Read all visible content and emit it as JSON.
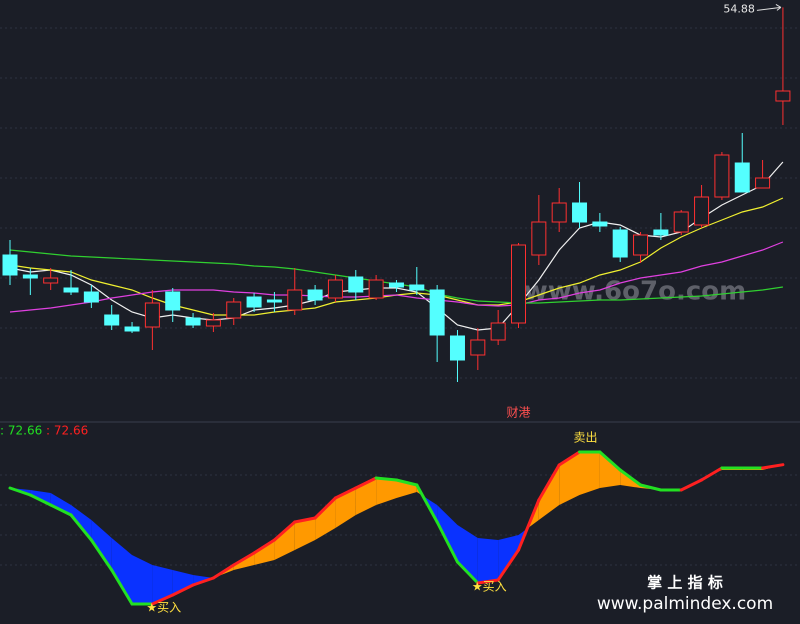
{
  "chart_data": [
    {
      "type": "candlestick",
      "ylim": [
        34.25,
        55.25
      ],
      "up_color": "#ff3030",
      "down_color": "#54ffff",
      "opens": [
        42.5,
        41.5,
        41.1,
        40.85,
        40.65,
        39.5,
        38.9,
        38.9,
        40.65,
        39.35,
        38.95,
        39.35,
        40.4,
        40.25,
        39.75,
        40.75,
        40.35,
        41.4,
        40.35,
        41.1,
        41,
        40.75,
        38.45,
        37.5,
        38.25,
        39.1,
        42.5,
        44.15,
        45.1,
        44.15,
        43.75,
        42.5,
        43.75,
        43.65,
        44,
        45.4,
        47.1,
        45.85,
        50.2
      ],
      "closes": [
        41.5,
        41.35,
        41.35,
        40.65,
        40.15,
        39,
        38.7,
        40.1,
        39.75,
        39,
        39.25,
        40.15,
        39.9,
        40.15,
        40.75,
        40.25,
        41.25,
        40.65,
        41.25,
        40.9,
        40.75,
        38.5,
        37.25,
        38.25,
        39.1,
        43,
        44.15,
        45.1,
        44.15,
        43.95,
        42.4,
        43.5,
        43.5,
        44.65,
        45.4,
        47.5,
        45.65,
        46.35,
        50.7
      ],
      "highs": [
        43.25,
        41.85,
        41.85,
        41.75,
        41,
        40,
        39.15,
        40.75,
        40.85,
        39.6,
        39.6,
        40.35,
        40.6,
        40.65,
        41.85,
        41,
        41.5,
        41.75,
        41.5,
        41.25,
        41.9,
        41,
        38.75,
        38.85,
        39.75,
        43.1,
        45.5,
        45.85,
        46.15,
        44.6,
        43.9,
        43.65,
        44.6,
        44.75,
        46,
        47.65,
        48.6,
        47.25,
        54.88
      ],
      "lows": [
        41,
        40.5,
        40.75,
        40.5,
        39.85,
        38.75,
        38.6,
        37.75,
        39.15,
        38.85,
        38.65,
        39,
        39.65,
        39.65,
        39.5,
        40,
        40.15,
        40.25,
        40.25,
        40.65,
        40.5,
        37.15,
        36.15,
        36.75,
        38,
        38.85,
        42,
        43.65,
        43.85,
        43.65,
        42.15,
        42.1,
        43.25,
        43.5,
        43.85,
        45.25,
        45.65,
        45.85,
        49
      ],
      "series": [
        {
          "color": "#f0f0f0",
          "values": [
            41.85,
            41.65,
            41.75,
            41.5,
            41,
            40.25,
            39.65,
            39.35,
            39.5,
            39.35,
            39.25,
            39.35,
            39.75,
            39.85,
            40,
            40.25,
            40.65,
            40.75,
            40.85,
            40.85,
            40.65,
            39.85,
            39,
            38.75,
            38.85,
            40,
            41.25,
            42.75,
            43.85,
            44.15,
            44,
            43.5,
            43.4,
            43.65,
            44.35,
            45,
            45.5,
            46,
            47.15
          ]
        },
        {
          "color": "#f0f030",
          "values": [
            42,
            41.85,
            41.75,
            41.65,
            41.25,
            41,
            40.75,
            40.35,
            40,
            39.75,
            39.5,
            39.5,
            39.5,
            39.65,
            39.75,
            39.85,
            40.15,
            40.25,
            40.35,
            40.5,
            40.6,
            40.5,
            40.25,
            40,
            40,
            40.15,
            40.5,
            40.85,
            41.1,
            41.5,
            41.75,
            42.15,
            42.85,
            43.4,
            43.85,
            44.25,
            44.65,
            44.9,
            45.35
          ]
        },
        {
          "color": "#e040e0",
          "values": [
            39.65,
            39.75,
            39.85,
            40,
            40.15,
            40.35,
            40.5,
            40.65,
            40.75,
            40.75,
            40.75,
            40.65,
            40.6,
            40.5,
            40.5,
            40.45,
            40.4,
            40.4,
            40.45,
            40.5,
            40.35,
            40.25,
            40.15,
            40,
            39.95,
            40,
            40.25,
            40.35,
            40.6,
            40.75,
            41.1,
            41.35,
            41.5,
            41.65,
            41.95,
            42.15,
            42.45,
            42.75,
            43.15
          ]
        },
        {
          "color": "#30d030",
          "values": [
            42.75,
            42.65,
            42.55,
            42.45,
            42.4,
            42.35,
            42.3,
            42.25,
            42.2,
            42.15,
            42.1,
            42.05,
            41.95,
            41.9,
            41.8,
            41.65,
            41.5,
            41.35,
            41.2,
            41.05,
            40.9,
            40.55,
            40.35,
            40.2,
            40.15,
            40.1,
            40.1,
            40.15,
            40.2,
            40.25,
            40.25,
            40.3,
            40.35,
            40.4,
            40.45,
            40.55,
            40.65,
            40.75,
            40.9
          ]
        }
      ],
      "annotations": [
        {
          "text": "财港",
          "x": 25
        }
      ]
    },
    {
      "type": "band",
      "ylim": [
        0,
        100
      ],
      "rise_color": "#ff2020",
      "fall_color": "#22e022",
      "fill_above": "#ff9900",
      "fill_below": "#0a32ff",
      "series": [
        {
          "color": "#22e022",
          "readout": ": 72.66",
          "values": [
            61,
            57.5,
            52.5,
            47.5,
            35,
            20,
            3,
            3,
            7.5,
            12.5,
            16,
            22.5,
            28.5,
            35,
            44,
            46,
            56,
            61,
            66,
            65,
            62.5,
            44,
            24,
            13.5,
            15,
            30,
            55,
            72.5,
            79,
            79,
            70,
            62.5,
            60,
            60,
            65,
            71,
            71,
            71,
            72.66
          ]
        },
        {
          "color": "#ff2020",
          "readout": ": 72.66",
          "values": [
            61,
            60,
            58.5,
            52.5,
            45,
            36,
            27.5,
            22.5,
            20,
            17.5,
            16,
            20,
            22.5,
            25,
            30,
            35,
            41,
            47.5,
            52.5,
            56,
            59,
            52.5,
            42.5,
            36,
            35,
            37.5,
            45,
            52.5,
            57.5,
            61,
            62.5,
            61,
            60,
            60,
            66,
            70,
            70,
            70,
            72.66
          ]
        }
      ],
      "annotations": [
        {
          "text": "★买入",
          "x": 7
        },
        {
          "text": "★买入",
          "x": 23
        },
        {
          "text": "卖出",
          "x": 28
        }
      ]
    }
  ],
  "watermarks": [
    "www.6o7o.com",
    "掌 上 指 标",
    "www.palmindex.com"
  ]
}
